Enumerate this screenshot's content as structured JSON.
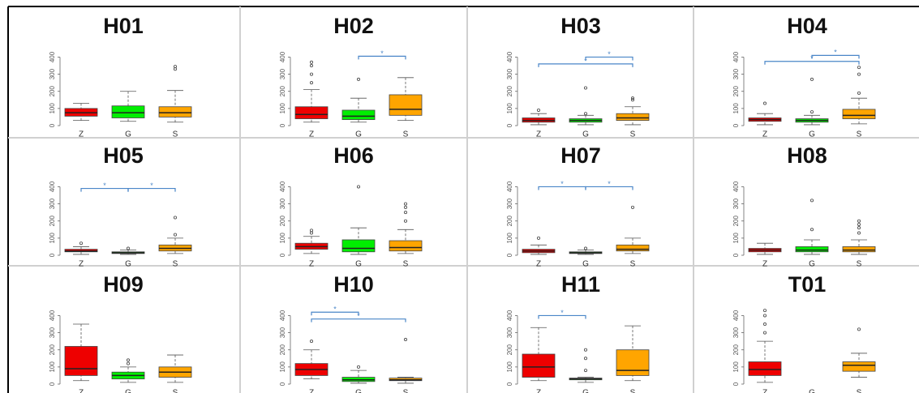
{
  "chart_data": [
    {
      "type": "box",
      "title": "H01",
      "categories": [
        "Z",
        "G",
        "S"
      ],
      "ylim": [
        0,
        440
      ],
      "yticks": [
        0,
        100,
        200,
        300,
        400
      ],
      "boxes": [
        {
          "color": "#ee0000",
          "min": 30,
          "q1": 55,
          "median": 75,
          "q3": 100,
          "max": 130,
          "outliers": []
        },
        {
          "color": "#00ee00",
          "min": 25,
          "q1": 45,
          "median": 75,
          "q3": 115,
          "max": 200,
          "outliers": []
        },
        {
          "color": "#ffa500",
          "min": 20,
          "q1": 50,
          "median": 75,
          "q3": 110,
          "max": 205,
          "outliers": [
            330,
            345
          ]
        }
      ],
      "brackets": []
    },
    {
      "type": "box",
      "title": "H02",
      "categories": [
        "Z",
        "G",
        "S"
      ],
      "ylim": [
        0,
        440
      ],
      "yticks": [
        0,
        100,
        200,
        300,
        400
      ],
      "boxes": [
        {
          "color": "#ee0000",
          "min": 20,
          "q1": 40,
          "median": 65,
          "q3": 110,
          "max": 210,
          "outliers": [
            250,
            300,
            350,
            370
          ]
        },
        {
          "color": "#00ee00",
          "min": 20,
          "q1": 35,
          "median": 55,
          "q3": 90,
          "max": 160,
          "outliers": [
            270
          ]
        },
        {
          "color": "#ffa500",
          "min": 30,
          "q1": 60,
          "median": 95,
          "q3": 180,
          "max": 280,
          "outliers": []
        }
      ],
      "brackets": [
        {
          "from": 1,
          "to": 2,
          "y": 405,
          "label": "*"
        }
      ]
    },
    {
      "type": "box",
      "title": "H03",
      "categories": [
        "Z",
        "G",
        "S"
      ],
      "ylim": [
        0,
        440
      ],
      "yticks": [
        0,
        100,
        200,
        300,
        400
      ],
      "boxes": [
        {
          "color": "#ee0000",
          "min": 5,
          "q1": 20,
          "median": 30,
          "q3": 45,
          "max": 70,
          "outliers": [
            90
          ]
        },
        {
          "color": "#00ee00",
          "min": 5,
          "q1": 20,
          "median": 30,
          "q3": 40,
          "max": 60,
          "outliers": [
            70,
            220
          ]
        },
        {
          "color": "#ffa500",
          "min": 5,
          "q1": 30,
          "median": 45,
          "q3": 70,
          "max": 110,
          "outliers": [
            150,
            160
          ]
        }
      ],
      "brackets": [
        {
          "from": 0,
          "to": 2,
          "y": 360,
          "label": "*"
        },
        {
          "from": 1,
          "to": 2,
          "y": 400,
          "label": "*"
        }
      ]
    },
    {
      "type": "box",
      "title": "H04",
      "categories": [
        "Z",
        "G",
        "S"
      ],
      "ylim": [
        0,
        440
      ],
      "yticks": [
        0,
        100,
        200,
        300,
        400
      ],
      "boxes": [
        {
          "color": "#ee0000",
          "min": 5,
          "q1": 25,
          "median": 35,
          "q3": 45,
          "max": 70,
          "outliers": [
            130
          ]
        },
        {
          "color": "#00ee00",
          "min": 5,
          "q1": 20,
          "median": 30,
          "q3": 40,
          "max": 60,
          "outliers": [
            80,
            270
          ]
        },
        {
          "color": "#ffa500",
          "min": 10,
          "q1": 40,
          "median": 60,
          "q3": 95,
          "max": 160,
          "outliers": [
            190,
            300,
            340
          ]
        }
      ],
      "brackets": [
        {
          "from": 0,
          "to": 2,
          "y": 375,
          "label": "*"
        },
        {
          "from": 1,
          "to": 2,
          "y": 410,
          "label": "*"
        }
      ]
    },
    {
      "type": "box",
      "title": "H05",
      "categories": [
        "Z",
        "G",
        "S"
      ],
      "ylim": [
        0,
        440
      ],
      "yticks": [
        0,
        100,
        200,
        300,
        400
      ],
      "boxes": [
        {
          "color": "#ee0000",
          "min": 5,
          "q1": 20,
          "median": 25,
          "q3": 35,
          "max": 50,
          "outliers": [
            70
          ]
        },
        {
          "color": "#00ee00",
          "min": 5,
          "q1": 10,
          "median": 15,
          "q3": 20,
          "max": 30,
          "outliers": [
            40
          ]
        },
        {
          "color": "#ffa500",
          "min": 10,
          "q1": 25,
          "median": 40,
          "q3": 60,
          "max": 100,
          "outliers": [
            120,
            220
          ]
        }
      ],
      "brackets": [
        {
          "from": 0,
          "to": 1,
          "y": 390,
          "label": "*"
        },
        {
          "from": 1,
          "to": 2,
          "y": 390,
          "label": "*"
        }
      ]
    },
    {
      "type": "box",
      "title": "H06",
      "categories": [
        "Z",
        "G",
        "S"
      ],
      "ylim": [
        0,
        440
      ],
      "yticks": [
        0,
        100,
        200,
        300,
        400
      ],
      "boxes": [
        {
          "color": "#ee0000",
          "min": 10,
          "q1": 35,
          "median": 50,
          "q3": 70,
          "max": 110,
          "outliers": [
            130,
            145
          ]
        },
        {
          "color": "#00ee00",
          "min": 5,
          "q1": 20,
          "median": 40,
          "q3": 90,
          "max": 160,
          "outliers": [
            400
          ]
        },
        {
          "color": "#ffa500",
          "min": 10,
          "q1": 25,
          "median": 45,
          "q3": 85,
          "max": 150,
          "outliers": [
            200,
            250,
            280,
            300
          ]
        }
      ],
      "brackets": []
    },
    {
      "type": "box",
      "title": "H07",
      "categories": [
        "Z",
        "G",
        "S"
      ],
      "ylim": [
        0,
        440
      ],
      "yticks": [
        0,
        100,
        200,
        300,
        400
      ],
      "boxes": [
        {
          "color": "#ee0000",
          "min": 5,
          "q1": 15,
          "median": 25,
          "q3": 35,
          "max": 60,
          "outliers": [
            100
          ]
        },
        {
          "color": "#00ee00",
          "min": 5,
          "q1": 10,
          "median": 15,
          "q3": 20,
          "max": 30,
          "outliers": [
            40
          ]
        },
        {
          "color": "#ffa500",
          "min": 10,
          "q1": 25,
          "median": 35,
          "q3": 60,
          "max": 100,
          "outliers": [
            280
          ]
        }
      ],
      "brackets": [
        {
          "from": 0,
          "to": 1,
          "y": 400,
          "label": "*"
        },
        {
          "from": 1,
          "to": 2,
          "y": 400,
          "label": "*"
        }
      ]
    },
    {
      "type": "box",
      "title": "H08",
      "categories": [
        "Z",
        "G",
        "S"
      ],
      "ylim": [
        0,
        440
      ],
      "yticks": [
        0,
        100,
        200,
        300,
        400
      ],
      "boxes": [
        {
          "color": "#ee0000",
          "min": 5,
          "q1": 20,
          "median": 30,
          "q3": 40,
          "max": 70,
          "outliers": []
        },
        {
          "color": "#00ee00",
          "min": 5,
          "q1": 20,
          "median": 30,
          "q3": 50,
          "max": 90,
          "outliers": [
            150,
            320
          ]
        },
        {
          "color": "#ffa500",
          "min": 5,
          "q1": 20,
          "median": 30,
          "q3": 50,
          "max": 90,
          "outliers": [
            130,
            160,
            180,
            200
          ]
        }
      ],
      "brackets": []
    },
    {
      "type": "box",
      "title": "H09",
      "categories": [
        "Z",
        "G",
        "S"
      ],
      "ylim": [
        0,
        440
      ],
      "yticks": [
        0,
        100,
        200,
        300,
        400
      ],
      "boxes": [
        {
          "color": "#ee0000",
          "min": 20,
          "q1": 50,
          "median": 90,
          "q3": 220,
          "max": 350,
          "outliers": []
        },
        {
          "color": "#00ee00",
          "min": 10,
          "q1": 30,
          "median": 50,
          "q3": 70,
          "max": 100,
          "outliers": [
            120,
            140
          ]
        },
        {
          "color": "#ffa500",
          "min": 10,
          "q1": 40,
          "median": 70,
          "q3": 100,
          "max": 170,
          "outliers": []
        }
      ],
      "brackets": []
    },
    {
      "type": "box",
      "title": "H10",
      "categories": [
        "Z",
        "G",
        "S"
      ],
      "ylim": [
        0,
        440
      ],
      "yticks": [
        0,
        100,
        200,
        300,
        400
      ],
      "boxes": [
        {
          "color": "#ee0000",
          "min": 30,
          "q1": 50,
          "median": 85,
          "q3": 120,
          "max": 200,
          "outliers": [
            250
          ]
        },
        {
          "color": "#00ee00",
          "min": 5,
          "q1": 15,
          "median": 25,
          "q3": 40,
          "max": 80,
          "outliers": [
            100
          ]
        },
        {
          "color": "#ffa500",
          "min": 5,
          "q1": 20,
          "median": 25,
          "q3": 35,
          "max": 40,
          "outliers": [
            260
          ]
        }
      ],
      "brackets": [
        {
          "from": 0,
          "to": 1,
          "y": 420,
          "label": "*"
        },
        {
          "from": 0,
          "to": 2,
          "y": 380,
          "label": "*"
        }
      ]
    },
    {
      "type": "box",
      "title": "H11",
      "categories": [
        "Z",
        "G",
        "S"
      ],
      "ylim": [
        0,
        440
      ],
      "yticks": [
        0,
        100,
        200,
        300,
        400
      ],
      "boxes": [
        {
          "color": "#ee0000",
          "min": 20,
          "q1": 40,
          "median": 100,
          "q3": 175,
          "max": 330,
          "outliers": []
        },
        {
          "color": "#00ee00",
          "min": 10,
          "q1": 25,
          "median": 30,
          "q3": 35,
          "max": 40,
          "outliers": [
            80,
            150,
            200
          ]
        },
        {
          "color": "#ffa500",
          "min": 20,
          "q1": 50,
          "median": 80,
          "q3": 200,
          "max": 340,
          "outliers": []
        }
      ],
      "brackets": [
        {
          "from": 0,
          "to": 1,
          "y": 400,
          "label": "*"
        }
      ]
    },
    {
      "type": "box",
      "title": "T01",
      "categories": [
        "Z",
        "G",
        "S"
      ],
      "ylim": [
        0,
        440
      ],
      "yticks": [
        0,
        100,
        200,
        300,
        400
      ],
      "boxes": [
        {
          "color": "#ee0000",
          "min": 10,
          "q1": 50,
          "median": 85,
          "q3": 130,
          "max": 250,
          "outliers": [
            300,
            350,
            400,
            430
          ]
        },
        null,
        {
          "color": "#ffa500",
          "min": 40,
          "q1": 75,
          "median": 110,
          "q3": 130,
          "max": 180,
          "outliers": [
            320
          ]
        }
      ],
      "brackets": []
    }
  ]
}
